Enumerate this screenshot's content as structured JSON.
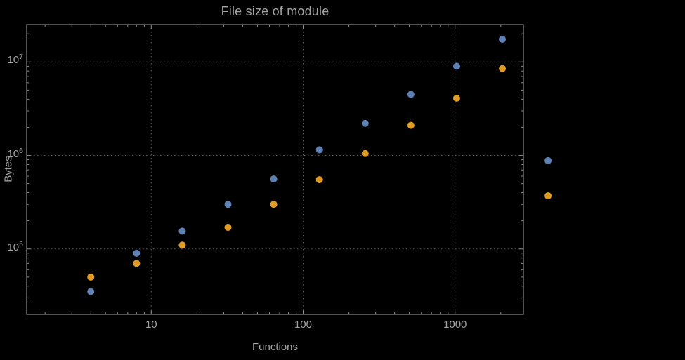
{
  "chart_data": {
    "type": "scatter",
    "title": "File size of module",
    "xlabel": "Functions",
    "ylabel": "Bytes",
    "x_scale": "log",
    "y_scale": "log",
    "x_ticks": [
      10,
      100,
      1000
    ],
    "y_tick_exponents": [
      5,
      6,
      7
    ],
    "x_range_log10": [
      0.18,
      3.45
    ],
    "y_range_log10": [
      4.3,
      7.4
    ],
    "grid": "dotted-at-major-ticks",
    "legend_position": "none",
    "series": [
      {
        "name": "series-1-blue",
        "color": "#5e81b5",
        "points": [
          [
            4,
            35000
          ],
          [
            8,
            90000
          ],
          [
            16,
            155000
          ],
          [
            32,
            300000
          ],
          [
            64,
            560000
          ],
          [
            128,
            1150000
          ],
          [
            256,
            2200000
          ],
          [
            512,
            4500000
          ],
          [
            1024,
            9000000
          ],
          [
            2048,
            17500000
          ],
          [
            4096,
            880000
          ]
        ]
      },
      {
        "name": "series-2-orange",
        "color": "#e19c24",
        "points": [
          [
            4,
            50000
          ],
          [
            8,
            70000
          ],
          [
            16,
            110000
          ],
          [
            32,
            170000
          ],
          [
            64,
            300000
          ],
          [
            128,
            550000
          ],
          [
            256,
            1050000
          ],
          [
            512,
            2100000
          ],
          [
            1024,
            4100000
          ],
          [
            2048,
            8500000
          ],
          [
            4096,
            370000
          ]
        ]
      }
    ]
  },
  "style": {
    "background_color": "#000000",
    "frame_color": "#8a8a8a",
    "grid_color": "#5c5c5c",
    "text_color": "#a3a3a3",
    "point_radius": 5
  }
}
